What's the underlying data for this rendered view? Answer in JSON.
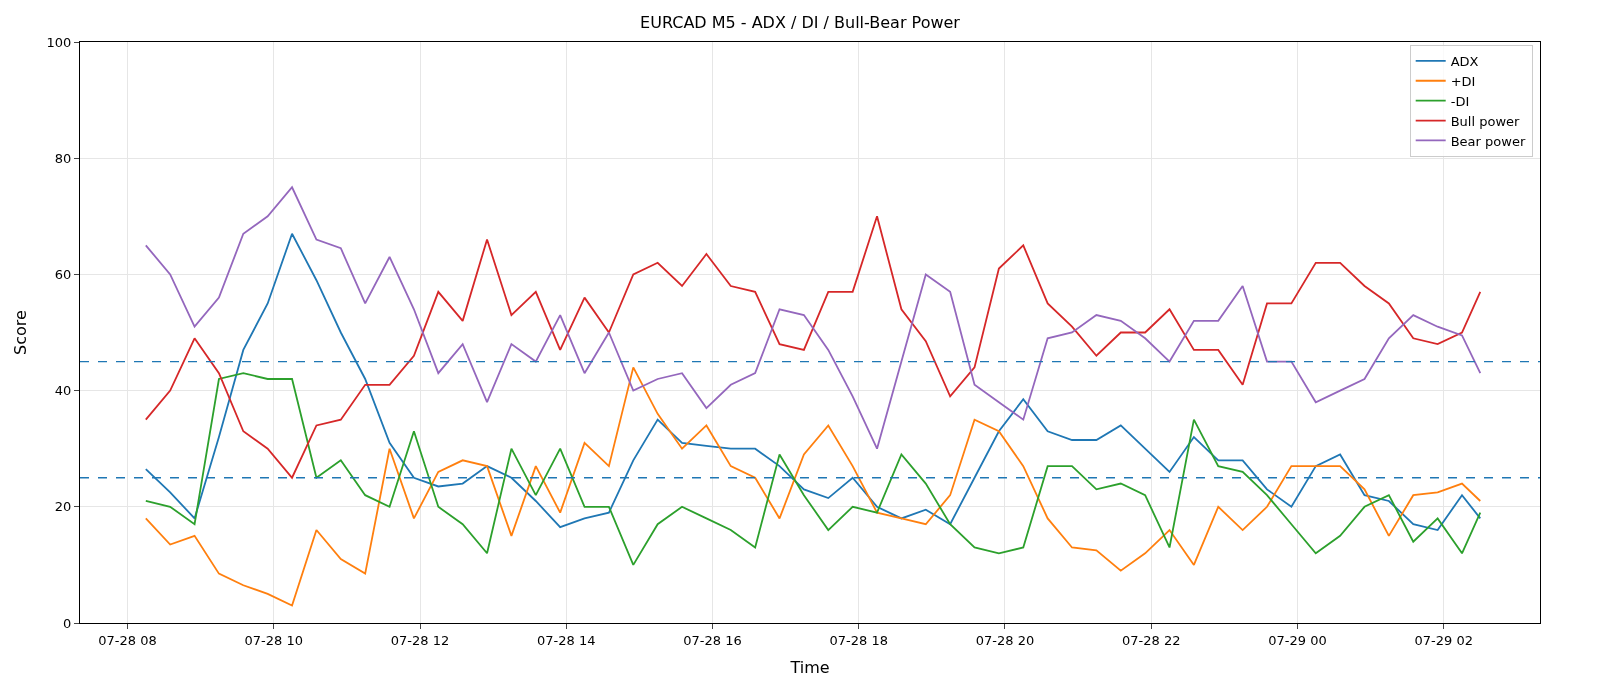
{
  "chart_data": {
    "type": "line",
    "title": "EURCAD M5 - ADX / DI / Bull-Bear Power",
    "xlabel": "Time",
    "ylabel": "Score",
    "x": [
      "--07-28T08:15",
      "--07-28T08:35",
      "--07-28T08:55",
      "--07-28T09:15",
      "--07-28T09:35",
      "--07-28T09:55",
      "--07-28T10:15",
      "--07-28T10:35",
      "--07-28T10:55",
      "--07-28T11:15",
      "--07-28T11:35",
      "--07-28T11:55",
      "--07-28T12:15",
      "--07-28T12:35",
      "--07-28T12:55",
      "--07-28T13:15",
      "--07-28T13:35",
      "--07-28T13:55",
      "--07-28T14:15",
      "--07-28T14:35",
      "--07-28T14:55",
      "--07-28T15:15",
      "--07-28T15:35",
      "--07-28T15:55",
      "--07-28T16:15",
      "--07-28T16:35",
      "--07-28T16:55",
      "--07-28T17:15",
      "--07-28T17:35",
      "--07-28T17:55",
      "--07-28T18:15",
      "--07-28T18:35",
      "--07-28T18:55",
      "--07-28T19:15",
      "--07-28T19:35",
      "--07-28T19:55",
      "--07-28T20:15",
      "--07-28T20:35",
      "--07-28T20:55",
      "--07-28T21:15",
      "--07-28T21:35",
      "--07-28T21:55",
      "--07-28T22:15",
      "--07-28T22:35",
      "--07-28T22:55",
      "--07-28T23:15",
      "--07-28T23:35",
      "--07-28T23:55",
      "--07-29T00:15",
      "--07-29T00:35",
      "--07-29T00:55",
      "--07-29T01:15",
      "--07-29T01:35",
      "--07-29T01:55",
      "--07-29T02:15",
      "--07-29T02:30"
    ],
    "series": [
      {
        "name": "ADX",
        "color": "#1f77b4",
        "values": [
          26.5,
          22.5,
          18,
          32,
          47,
          55,
          67,
          59,
          50,
          42,
          31,
          25,
          23.5,
          24,
          27,
          25,
          21,
          16.5,
          18,
          19,
          28,
          35,
          31,
          30.5,
          30,
          30,
          27,
          23,
          21.5,
          25,
          20,
          18,
          19.5,
          17,
          25,
          33,
          38.5,
          33,
          31.5,
          31.5,
          34,
          30,
          26,
          32,
          28,
          28,
          23,
          20,
          27,
          29,
          22,
          21,
          17,
          16,
          22,
          18
        ]
      },
      {
        "name": "+DI",
        "color": "#ff7f0e",
        "values": [
          18,
          13.5,
          15,
          8.5,
          6.5,
          5,
          3,
          16,
          11,
          8.5,
          30,
          18,
          26,
          28,
          27,
          15,
          27,
          19,
          31,
          27,
          44,
          36,
          30,
          34,
          27,
          25,
          18,
          29,
          34,
          27,
          19,
          18,
          17,
          22,
          35,
          33,
          27,
          18,
          13,
          12.5,
          9,
          12,
          16,
          10,
          20,
          16,
          20,
          27,
          27,
          27,
          23,
          15,
          22,
          22.5,
          24,
          21
        ]
      },
      {
        "name": "-DI",
        "color": "#2ca02c",
        "values": [
          21,
          20,
          17,
          42,
          43,
          42,
          42,
          25,
          28,
          22,
          20,
          33,
          20,
          17,
          12,
          30,
          22,
          30,
          20,
          20,
          10,
          17,
          20,
          18,
          16,
          13,
          29,
          22,
          16,
          20,
          19,
          29,
          24,
          17,
          13,
          12,
          13,
          27,
          27,
          23,
          24,
          22,
          13,
          35,
          27,
          26,
          22,
          17,
          12,
          15,
          20,
          22,
          14,
          18,
          12,
          19
        ]
      },
      {
        "name": "Bull power",
        "color": "#d62728",
        "values": [
          35,
          40,
          49,
          43,
          33,
          30,
          25,
          34,
          35,
          41,
          41,
          46,
          57,
          52,
          66,
          53,
          57,
          47,
          56,
          50,
          60,
          62,
          58,
          63.5,
          58,
          57,
          48,
          47,
          57,
          57,
          70,
          54,
          48.5,
          39,
          44,
          61,
          65,
          55,
          51,
          46,
          50,
          50,
          54,
          47,
          47,
          41,
          55,
          55,
          62,
          62,
          58,
          55,
          49,
          48,
          50,
          57
        ]
      },
      {
        "name": "Bear power",
        "color": "#9467bd",
        "values": [
          65,
          60,
          51,
          56,
          67,
          70,
          75,
          66,
          64.5,
          55,
          63,
          54,
          43,
          48,
          38,
          48,
          45,
          53,
          43,
          50,
          40,
          42,
          43,
          37,
          41,
          43,
          54,
          53,
          47,
          39,
          30,
          45,
          60,
          57,
          41,
          38,
          35,
          49,
          50,
          53,
          52,
          49,
          45,
          52,
          52,
          58,
          45,
          45,
          38,
          40,
          42,
          49,
          53,
          51,
          49.5,
          43
        ]
      }
    ],
    "xlim": [
      "--07-28T07:21",
      "--07-29T03:19"
    ],
    "xticks": [
      {
        "value": "--07-28T08:00",
        "label": "07-28 08"
      },
      {
        "value": "--07-28T10:00",
        "label": "07-28 10"
      },
      {
        "value": "--07-28T12:00",
        "label": "07-28 12"
      },
      {
        "value": "--07-28T14:00",
        "label": "07-28 14"
      },
      {
        "value": "--07-28T16:00",
        "label": "07-28 16"
      },
      {
        "value": "--07-28T18:00",
        "label": "07-28 18"
      },
      {
        "value": "--07-28T20:00",
        "label": "07-28 20"
      },
      {
        "value": "--07-28T22:00",
        "label": "07-28 22"
      },
      {
        "value": "--07-29T00:00",
        "label": "07-29 00"
      },
      {
        "value": "--07-29T02:00",
        "label": "07-29 02"
      }
    ],
    "ylim": [
      0,
      100
    ],
    "yticks": [
      0,
      20,
      40,
      60,
      80,
      100
    ],
    "ref_lines": [
      {
        "axis": "y",
        "value": 45,
        "color": "#1f77b4",
        "line_style": "dashed"
      },
      {
        "axis": "y",
        "value": 25,
        "color": "#1f77b4",
        "line_style": "dashed"
      }
    ],
    "grid": true,
    "legend": "top right",
    "line_style": "solid",
    "marker": "none"
  }
}
